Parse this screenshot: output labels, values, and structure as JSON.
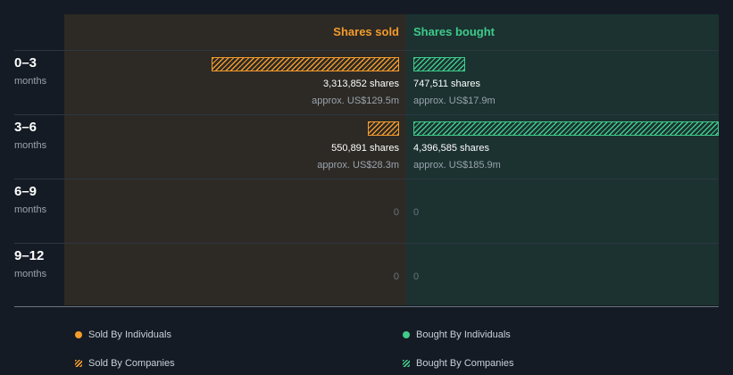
{
  "chart_data": {
    "type": "bar",
    "title": "",
    "categories": [
      "0–3",
      "3–6",
      "6–9",
      "9–12"
    ],
    "category_unit": "months",
    "series": [
      {
        "name": "Shares sold",
        "color": "#f39b2c",
        "values": [
          3313852,
          550891,
          0,
          0
        ],
        "labels": [
          "3,313,852 shares",
          "550,891 shares",
          "0",
          "0"
        ],
        "approx": [
          "approx. US$129.5m",
          "approx. US$28.3m",
          "",
          ""
        ]
      },
      {
        "name": "Shares bought",
        "color": "#3fcb8a",
        "values": [
          747511,
          4396585,
          0,
          0
        ],
        "labels": [
          "747,511 shares",
          "4,396,585 shares",
          "0",
          "0"
        ],
        "approx": [
          "approx. US$17.9m",
          "approx. US$185.9m",
          "",
          ""
        ]
      }
    ],
    "legend": [
      {
        "label": "Sold By Individuals",
        "icon": "dot",
        "color": "#f39b2c"
      },
      {
        "label": "Bought By Individuals",
        "icon": "dot",
        "color": "#3fcb8a"
      },
      {
        "label": "Sold By Companies",
        "icon": "hatch",
        "color": "#f39b2c"
      },
      {
        "label": "Bought By Companies",
        "icon": "hatch",
        "color": "#3fcb8a"
      }
    ],
    "legend_position": "bottom"
  }
}
